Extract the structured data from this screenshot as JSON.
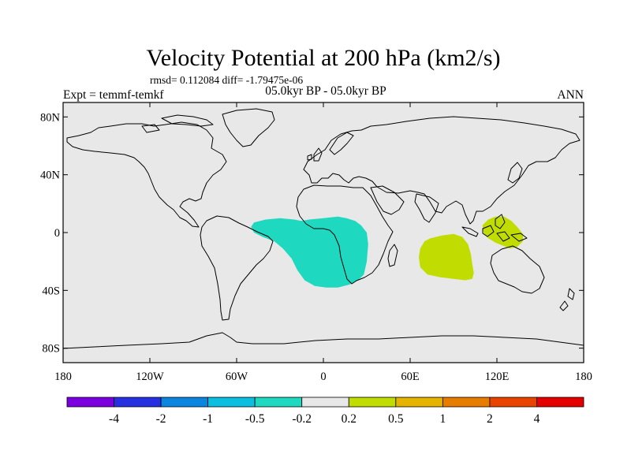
{
  "chart_data": {
    "type": "heatmap",
    "title": "Velocity Potential at 200 hPa (km2/s)",
    "stats_text": "rmsd= 0.112084  diff= -1.79475e-06",
    "subtitle": "05.0kyr BP - 05.0kyr BP",
    "left_label": "Expt = temmf-temkf",
    "right_label": "ANN",
    "projection": "cylindrical-equidistant",
    "xlim": [
      -180,
      180
    ],
    "ylim": [
      -90,
      90
    ],
    "x_ticks": [
      {
        "value": -180,
        "label": "180"
      },
      {
        "value": -120,
        "label": "120W"
      },
      {
        "value": -60,
        "label": "60W"
      },
      {
        "value": 0,
        "label": "0"
      },
      {
        "value": 60,
        "label": "60E"
      },
      {
        "value": 120,
        "label": "120E"
      },
      {
        "value": 180,
        "label": "180"
      }
    ],
    "y_ticks": [
      {
        "value": 80,
        "label": "80N"
      },
      {
        "value": 40,
        "label": "40N"
      },
      {
        "value": 0,
        "label": "0"
      },
      {
        "value": -40,
        "label": "40S"
      },
      {
        "value": -80,
        "label": "80S"
      }
    ],
    "background_color": "#e8e8e8",
    "regions": [
      {
        "name": "negative-anomaly-atlantic-africa",
        "level": "-0.5 to -0.2",
        "color": "#1ed9c0",
        "lonlat": [
          [
            -48,
            7
          ],
          [
            -40,
            9
          ],
          [
            -30,
            10
          ],
          [
            -20,
            9
          ],
          [
            -15,
            8
          ],
          [
            -10,
            9
          ],
          [
            0,
            10
          ],
          [
            10,
            11
          ],
          [
            16,
            10
          ],
          [
            22,
            8
          ],
          [
            26,
            5
          ],
          [
            30,
            0
          ],
          [
            31,
            -8
          ],
          [
            30,
            -20
          ],
          [
            28,
            -29
          ],
          [
            24,
            -33
          ],
          [
            18,
            -36
          ],
          [
            10,
            -38
          ],
          [
            2,
            -38
          ],
          [
            -6,
            -37
          ],
          [
            -13,
            -33
          ],
          [
            -18,
            -26
          ],
          [
            -22,
            -18
          ],
          [
            -28,
            -11
          ],
          [
            -34,
            -6
          ],
          [
            -42,
            -3
          ],
          [
            -48,
            0
          ],
          [
            -50,
            4
          ]
        ]
      },
      {
        "name": "positive-anomaly-indian-ocean",
        "level": "0.2 to 0.5",
        "color": "#c0dc00",
        "lonlat": [
          [
            74,
            -4
          ],
          [
            82,
            -2
          ],
          [
            90,
            -1
          ],
          [
            96,
            -3
          ],
          [
            100,
            -8
          ],
          [
            102,
            -15
          ],
          [
            103,
            -22
          ],
          [
            104,
            -28
          ],
          [
            103,
            -32
          ],
          [
            98,
            -33
          ],
          [
            90,
            -32
          ],
          [
            81,
            -31
          ],
          [
            72,
            -29
          ],
          [
            67,
            -24
          ],
          [
            66,
            -17
          ],
          [
            67,
            -11
          ],
          [
            70,
            -6
          ]
        ]
      },
      {
        "name": "positive-anomaly-maritime-continent",
        "level": "0.2 to 0.5",
        "color": "#c0dc00",
        "lonlat": [
          [
            110,
            5
          ],
          [
            114,
            9
          ],
          [
            119,
            11
          ],
          [
            125,
            11
          ],
          [
            130,
            8
          ],
          [
            134,
            4
          ],
          [
            138,
            -1
          ],
          [
            138,
            -6
          ],
          [
            134,
            -10
          ],
          [
            129,
            -11
          ],
          [
            124,
            -9
          ],
          [
            119,
            -7
          ],
          [
            114,
            -4
          ],
          [
            111,
            -1
          ]
        ]
      }
    ],
    "colorbar": {
      "levels": [
        "-4",
        "-2",
        "-1",
        "-0.5",
        "-0.2",
        "0.2",
        "0.5",
        "1",
        "2",
        "4"
      ],
      "colors": [
        "#7b00e0",
        "#2630e0",
        "#0a86e0",
        "#0cbfe0",
        "#1ed9c0",
        "#e8e8e8",
        "#c0dc00",
        "#e4b400",
        "#e67c00",
        "#e84400",
        "#e40000"
      ]
    }
  }
}
